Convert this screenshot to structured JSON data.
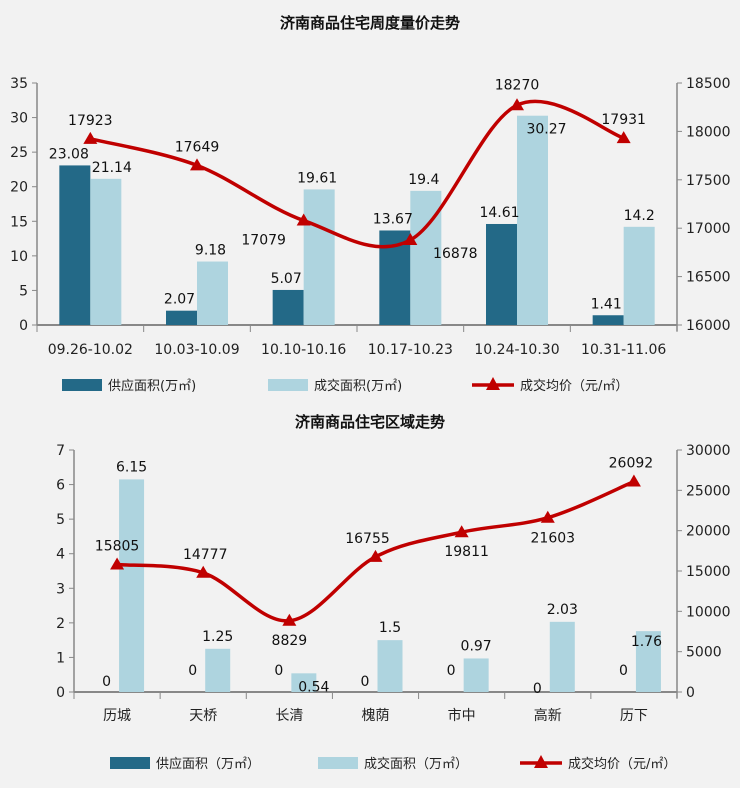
{
  "colors": {
    "supply": "#236987",
    "deal": "#aed4df",
    "price": "#c00000",
    "axis": "#888888"
  },
  "chart_data": [
    {
      "type": "bar+line",
      "title": "济南商品住宅周度量价走势",
      "categories": [
        "09.26-10.02",
        "10.03-10.09",
        "10.10-10.16",
        "10.17-10.23",
        "10.24-10.30",
        "10.31-11.06"
      ],
      "series": [
        {
          "name": "供应面积(万㎡)",
          "type": "bar",
          "axis": "left",
          "values": [
            23.08,
            2.07,
            5.07,
            13.67,
            14.61,
            1.41
          ],
          "labels": [
            "23.08",
            "2.07",
            "5.07",
            "13.67",
            "14.61",
            "1.41"
          ]
        },
        {
          "name": "成交面积(万㎡)",
          "type": "bar",
          "axis": "left",
          "values": [
            21.14,
            9.18,
            19.61,
            19.4,
            30.27,
            14.2
          ],
          "labels": [
            "21.14",
            "9.18",
            "19.61",
            "19.4",
            "30.27",
            "14.2"
          ]
        },
        {
          "name": "成交均价（元/㎡）",
          "type": "line",
          "axis": "right",
          "values": [
            17923,
            17649,
            17079,
            16878,
            18270,
            17931
          ],
          "labels": [
            "17923",
            "17649",
            "17079",
            "16878",
            "18270",
            "17931"
          ]
        }
      ],
      "ylim": [
        0,
        35
      ],
      "yticks": [
        "0",
        "5",
        "10",
        "15",
        "20",
        "25",
        "30",
        "35"
      ],
      "y2lim": [
        16000,
        18500
      ],
      "y2ticks": [
        "16000",
        "16500",
        "17000",
        "17500",
        "18000",
        "18500"
      ],
      "legend": "bottom",
      "grid": false
    },
    {
      "type": "bar+line",
      "title": "济南商品住宅区域走势",
      "categories": [
        "历城",
        "天桥",
        "长清",
        "槐荫",
        "市中",
        "高新",
        "历下"
      ],
      "series": [
        {
          "name": "供应面积（万㎡）",
          "type": "bar",
          "axis": "left",
          "values": [
            0,
            0,
            0,
            0,
            0,
            0,
            0
          ],
          "labels": [
            "0",
            "0",
            "0",
            "0",
            "0",
            "0",
            "0"
          ]
        },
        {
          "name": "成交面积（万㎡）",
          "type": "bar",
          "axis": "left",
          "values": [
            6.15,
            1.25,
            0.54,
            1.5,
            0.97,
            2.03,
            1.76
          ],
          "labels": [
            "6.15",
            "1.25",
            "0.54",
            "1.5",
            "0.97",
            "2.03",
            "1.76"
          ]
        },
        {
          "name": "成交均价（元/㎡）",
          "type": "line",
          "axis": "right",
          "values": [
            15805,
            14777,
            8829,
            16755,
            19811,
            21603,
            26092
          ],
          "labels": [
            "15805",
            "14777",
            "8829",
            "16755",
            "19811",
            "21603",
            "26092"
          ]
        }
      ],
      "ylim": [
        0,
        7
      ],
      "yticks": [
        "0",
        "1",
        "2",
        "3",
        "4",
        "5",
        "6",
        "7"
      ],
      "y2lim": [
        0,
        30000
      ],
      "y2ticks": [
        "0",
        "5000",
        "10000",
        "15000",
        "20000",
        "25000",
        "30000"
      ],
      "legend": "bottom",
      "grid": false
    }
  ]
}
